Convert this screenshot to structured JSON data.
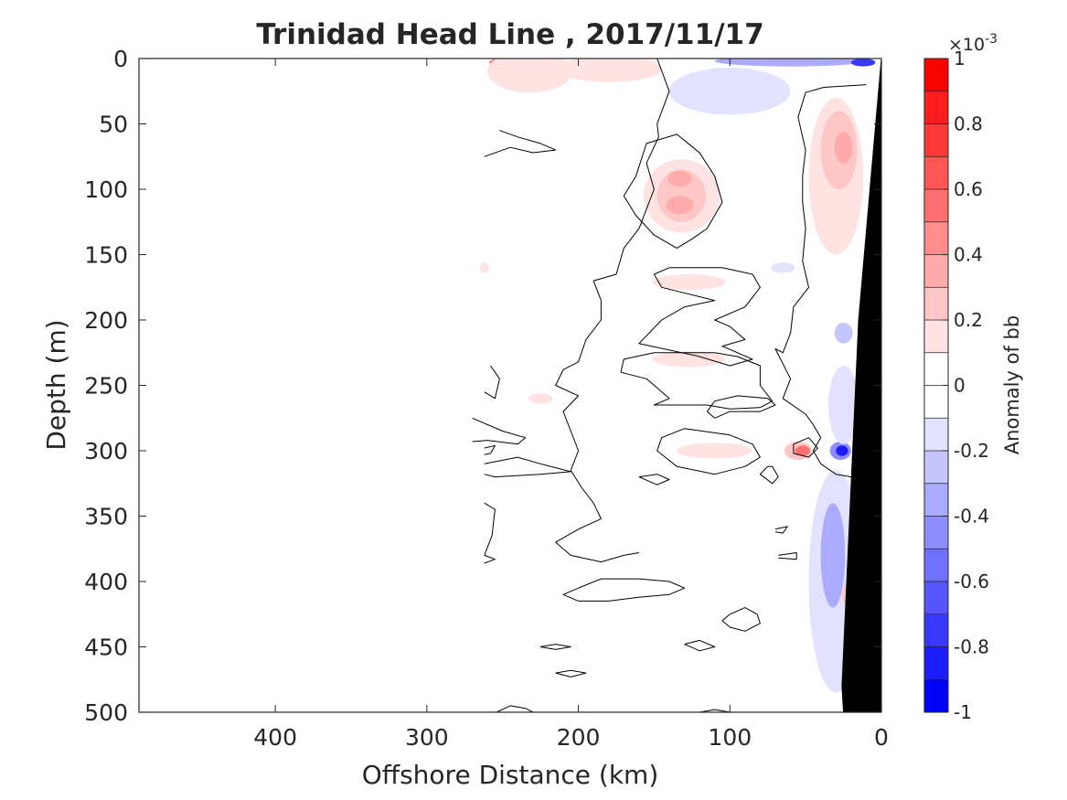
{
  "chart_data": {
    "type": "heatmap",
    "title": "Trinidad Head Line , 2017/11/17",
    "xlabel": "Offshore Distance (km)",
    "ylabel": "Depth (m)",
    "xlim": [
      490,
      0
    ],
    "ylim": [
      0,
      500
    ],
    "x_reversed": true,
    "y_reversed": true,
    "x_ticks": [
      400,
      300,
      200,
      100,
      0
    ],
    "x_tick_labels": [
      "400",
      "300",
      "200",
      "100",
      "0"
    ],
    "y_ticks": [
      0,
      50,
      100,
      150,
      200,
      250,
      300,
      350,
      400,
      450,
      500
    ],
    "y_tick_labels": [
      "0",
      "50",
      "100",
      "150",
      "200",
      "250",
      "300",
      "350",
      "400",
      "450",
      "500"
    ],
    "data_extent_km": [
      0,
      262
    ],
    "colorbar": {
      "label": "Anomaly of bb",
      "exponent_prefix": "×10",
      "exponent_power": "-3",
      "range": [
        -1,
        1
      ],
      "ticks": [
        1,
        0.8,
        0.6,
        0.4,
        0.2,
        0,
        -0.2,
        -0.4,
        -0.6,
        -0.8,
        -1
      ],
      "tick_labels": [
        "1",
        "0.8",
        "0.6",
        "0.4",
        "0.2",
        "0",
        "-0.2",
        "-0.4",
        "-0.6",
        "-0.8",
        "-1"
      ],
      "levels": [
        {
          "from": 0.9,
          "to": 1.0,
          "color": "#ff0000"
        },
        {
          "from": 0.8,
          "to": 0.9,
          "color": "#ff1c1c"
        },
        {
          "from": 0.7,
          "to": 0.8,
          "color": "#ff3838"
        },
        {
          "from": 0.6,
          "to": 0.7,
          "color": "#ff5555"
        },
        {
          "from": 0.5,
          "to": 0.6,
          "color": "#ff7171"
        },
        {
          "from": 0.4,
          "to": 0.5,
          "color": "#ff8d8d"
        },
        {
          "from": 0.3,
          "to": 0.4,
          "color": "#ffaaaa"
        },
        {
          "from": 0.2,
          "to": 0.3,
          "color": "#ffc6c6"
        },
        {
          "from": 0.1,
          "to": 0.2,
          "color": "#ffe2e2"
        },
        {
          "from": 0.0,
          "to": 0.1,
          "color": "#ffffff"
        },
        {
          "from": -0.1,
          "to": 0.0,
          "color": "#ffffff"
        },
        {
          "from": -0.2,
          "to": -0.1,
          "color": "#e2e2ff"
        },
        {
          "from": -0.3,
          "to": -0.2,
          "color": "#c6c6ff"
        },
        {
          "from": -0.4,
          "to": -0.3,
          "color": "#aaaaff"
        },
        {
          "from": -0.5,
          "to": -0.4,
          "color": "#8d8dff"
        },
        {
          "from": -0.6,
          "to": -0.5,
          "color": "#7171ff"
        },
        {
          "from": -0.7,
          "to": -0.6,
          "color": "#5555ff"
        },
        {
          "from": -0.8,
          "to": -0.7,
          "color": "#3838ff"
        },
        {
          "from": -0.9,
          "to": -0.8,
          "color": "#1c1cff"
        },
        {
          "from": -1.0,
          "to": -0.9,
          "color": "#0000ff"
        }
      ]
    },
    "anomaly_patches": [
      {
        "x": 245,
        "y": 3,
        "rx": 14,
        "ry": 4,
        "value": 0.45
      },
      {
        "x": 232,
        "y": 10,
        "rx": 28,
        "ry": 16,
        "value": 0.15
      },
      {
        "x": 180,
        "y": 8,
        "rx": 35,
        "ry": 10,
        "value": 0.15
      },
      {
        "x": 60,
        "y": 2,
        "rx": 50,
        "ry": 4,
        "value": -0.3
      },
      {
        "x": 12,
        "y": 3,
        "rx": 8,
        "ry": 3,
        "value": -0.7
      },
      {
        "x": 100,
        "y": 25,
        "rx": 40,
        "ry": 18,
        "value": -0.12
      },
      {
        "x": 132,
        "y": 105,
        "rx": 25,
        "ry": 28,
        "value": 0.15
      },
      {
        "x": 132,
        "y": 105,
        "rx": 16,
        "ry": 20,
        "value": 0.25
      },
      {
        "x": 133,
        "y": 92,
        "rx": 8,
        "ry": 6,
        "value": 0.35
      },
      {
        "x": 133,
        "y": 112,
        "rx": 9,
        "ry": 7,
        "value": 0.35
      },
      {
        "x": 30,
        "y": 90,
        "rx": 18,
        "ry": 60,
        "value": 0.15
      },
      {
        "x": 28,
        "y": 70,
        "rx": 12,
        "ry": 30,
        "value": 0.25
      },
      {
        "x": 25,
        "y": 68,
        "rx": 6,
        "ry": 12,
        "value": 0.35
      },
      {
        "x": 127,
        "y": 171,
        "rx": 24,
        "ry": 6,
        "value": 0.15
      },
      {
        "x": 127,
        "y": 230,
        "rx": 24,
        "ry": 6,
        "value": 0.15
      },
      {
        "x": 110,
        "y": 300,
        "rx": 25,
        "ry": 6,
        "value": 0.15
      },
      {
        "x": 55,
        "y": 300,
        "rx": 9,
        "ry": 7,
        "value": 0.25
      },
      {
        "x": 52,
        "y": 300,
        "rx": 5,
        "ry": 4,
        "value": 0.55
      },
      {
        "x": 27,
        "y": 300,
        "rx": 7,
        "ry": 7,
        "value": -0.45
      },
      {
        "x": 26,
        "y": 300,
        "rx": 4,
        "ry": 4,
        "value": -0.8
      },
      {
        "x": 65,
        "y": 160,
        "rx": 8,
        "ry": 4,
        "value": -0.15
      },
      {
        "x": 30,
        "y": 400,
        "rx": 18,
        "ry": 85,
        "value": -0.15
      },
      {
        "x": 32,
        "y": 380,
        "rx": 8,
        "ry": 40,
        "value": -0.3
      },
      {
        "x": 25,
        "y": 265,
        "rx": 10,
        "ry": 30,
        "value": -0.15
      },
      {
        "x": 20,
        "y": 410,
        "rx": 6,
        "ry": 10,
        "value": 0.3
      },
      {
        "x": 225,
        "y": 260,
        "rx": 8,
        "ry": 4,
        "value": 0.15
      },
      {
        "x": 262,
        "y": 160,
        "rx": 3,
        "ry": 4,
        "value": 0.15
      },
      {
        "x": 25,
        "y": 210,
        "rx": 6,
        "ry": 8,
        "value": -0.2
      }
    ],
    "zero_contours": [
      [
        [
          148,
          0
        ],
        [
          140,
          25
        ],
        [
          148,
          50
        ],
        [
          147,
          60
        ],
        [
          155,
          80
        ],
        [
          150,
          100
        ],
        [
          160,
          130
        ],
        [
          170,
          145
        ],
        [
          175,
          165
        ],
        [
          190,
          170
        ],
        [
          185,
          185
        ],
        [
          185,
          200
        ],
        [
          195,
          215
        ],
        [
          200,
          232
        ],
        [
          210,
          238
        ],
        [
          215,
          250
        ],
        [
          200,
          258
        ],
        [
          210,
          270
        ],
        [
          205,
          285
        ],
        [
          200,
          300
        ],
        [
          205,
          315
        ],
        [
          198,
          328
        ],
        [
          190,
          340
        ],
        [
          185,
          352
        ],
        [
          200,
          360
        ],
        [
          215,
          370
        ],
        [
          205,
          380
        ],
        [
          185,
          385
        ],
        [
          170,
          380
        ],
        [
          160,
          378
        ]
      ],
      [
        [
          10,
          20
        ],
        [
          38,
          22
        ],
        [
          50,
          26
        ],
        [
          55,
          45
        ],
        [
          50,
          70
        ],
        [
          52,
          90
        ],
        [
          52,
          110
        ],
        [
          50,
          130
        ],
        [
          52,
          155
        ],
        [
          48,
          175
        ],
        [
          58,
          190
        ],
        [
          60,
          210
        ],
        [
          65,
          225
        ],
        [
          70,
          222
        ],
        [
          60,
          245
        ],
        [
          65,
          260
        ],
        [
          50,
          272
        ],
        [
          45,
          280
        ],
        [
          40,
          290
        ],
        [
          45,
          300
        ],
        [
          40,
          310
        ],
        [
          30,
          318
        ],
        [
          20,
          320
        ],
        [
          15,
          330
        ],
        [
          14,
          360
        ],
        [
          12,
          400
        ],
        [
          15,
          440
        ],
        [
          12,
          470
        ],
        [
          14,
          500
        ]
      ],
      [
        [
          155,
          65
        ],
        [
          135,
          58
        ],
        [
          120,
          72
        ],
        [
          110,
          90
        ],
        [
          105,
          110
        ],
        [
          115,
          130
        ],
        [
          125,
          138
        ],
        [
          135,
          145
        ],
        [
          150,
          135
        ],
        [
          162,
          120
        ],
        [
          170,
          105
        ],
        [
          162,
          90
        ],
        [
          155,
          65
        ]
      ],
      [
        [
          252,
          55
        ],
        [
          240,
          60
        ],
        [
          225,
          65
        ],
        [
          215,
          70
        ],
        [
          230,
          72
        ],
        [
          245,
          68
        ],
        [
          262,
          75
        ]
      ],
      [
        [
          150,
          165
        ],
        [
          140,
          160
        ],
        [
          105,
          160
        ],
        [
          85,
          165
        ],
        [
          80,
          175
        ],
        [
          90,
          190
        ],
        [
          110,
          200
        ],
        [
          100,
          205
        ],
        [
          90,
          215
        ],
        [
          105,
          220
        ],
        [
          85,
          230
        ],
        [
          100,
          235
        ],
        [
          120,
          228
        ],
        [
          160,
          218
        ],
        [
          145,
          200
        ],
        [
          130,
          190
        ],
        [
          110,
          185
        ],
        [
          145,
          175
        ],
        [
          150,
          165
        ]
      ],
      [
        [
          172,
          240
        ],
        [
          155,
          245
        ],
        [
          140,
          260
        ],
        [
          150,
          265
        ],
        [
          115,
          265
        ],
        [
          100,
          268
        ],
        [
          80,
          267
        ],
        [
          72,
          262
        ],
        [
          80,
          250
        ],
        [
          80,
          235
        ],
        [
          95,
          228
        ],
        [
          110,
          225
        ],
        [
          150,
          225
        ],
        [
          170,
          230
        ],
        [
          172,
          240
        ]
      ],
      [
        [
          270,
          275
        ],
        [
          250,
          285
        ],
        [
          235,
          290
        ],
        [
          240,
          295
        ],
        [
          260,
          292
        ],
        [
          270,
          293
        ]
      ],
      [
        [
          130,
          283
        ],
        [
          145,
          290
        ],
        [
          148,
          300
        ],
        [
          135,
          312
        ],
        [
          110,
          318
        ],
        [
          90,
          312
        ],
        [
          80,
          305
        ],
        [
          85,
          295
        ],
        [
          100,
          288
        ],
        [
          130,
          283
        ]
      ],
      [
        [
          110,
          275
        ],
        [
          100,
          270
        ],
        [
          80,
          270
        ],
        [
          70,
          265
        ],
        [
          75,
          260
        ],
        [
          95,
          258
        ],
        [
          110,
          262
        ],
        [
          115,
          270
        ],
        [
          110,
          275
        ]
      ],
      [
        [
          200,
          415
        ],
        [
          180,
          415
        ],
        [
          160,
          412
        ],
        [
          140,
          410
        ],
        [
          130,
          405
        ],
        [
          140,
          400
        ],
        [
          160,
          398
        ],
        [
          185,
          398
        ],
        [
          200,
          405
        ],
        [
          210,
          410
        ],
        [
          200,
          415
        ]
      ],
      [
        [
          100,
          425
        ],
        [
          90,
          420
        ],
        [
          82,
          425
        ],
        [
          80,
          432
        ],
        [
          90,
          438
        ],
        [
          100,
          435
        ],
        [
          105,
          430
        ],
        [
          100,
          425
        ]
      ],
      [
        [
          262,
          310
        ],
        [
          240,
          305
        ],
        [
          225,
          310
        ],
        [
          205,
          316
        ],
        [
          225,
          318
        ],
        [
          255,
          320
        ],
        [
          262,
          318
        ]
      ],
      [
        [
          262,
          255
        ],
        [
          255,
          260
        ],
        [
          252,
          245
        ],
        [
          258,
          235
        ]
      ],
      [
        [
          262,
          340
        ],
        [
          255,
          345
        ],
        [
          257,
          365
        ],
        [
          262,
          380
        ]
      ],
      [
        [
          75,
          312
        ],
        [
          80,
          318
        ],
        [
          72,
          325
        ],
        [
          68,
          320
        ],
        [
          72,
          312
        ],
        [
          75,
          312
        ]
      ],
      [
        [
          58,
          295
        ],
        [
          48,
          290
        ],
        [
          42,
          298
        ],
        [
          48,
          305
        ],
        [
          58,
          302
        ],
        [
          58,
          295
        ]
      ],
      [
        [
          70,
          360
        ],
        [
          62,
          358
        ],
        [
          65,
          363
        ],
        [
          70,
          362
        ]
      ],
      [
        [
          68,
          380
        ],
        [
          56,
          378
        ],
        [
          56,
          383
        ],
        [
          68,
          382
        ]
      ],
      [
        [
          225,
          450
        ],
        [
          215,
          448
        ],
        [
          205,
          450
        ],
        [
          215,
          452
        ],
        [
          225,
          450
        ]
      ],
      [
        [
          130,
          448
        ],
        [
          120,
          445
        ],
        [
          110,
          450
        ],
        [
          120,
          453
        ],
        [
          130,
          448
        ]
      ],
      [
        [
          215,
          470
        ],
        [
          205,
          468
        ],
        [
          195,
          470
        ],
        [
          205,
          473
        ],
        [
          215,
          470
        ]
      ],
      [
        [
          160,
          320
        ],
        [
          148,
          318
        ],
        [
          140,
          322
        ],
        [
          148,
          326
        ],
        [
          160,
          320
        ]
      ],
      [
        [
          254,
          500
        ],
        [
          245,
          495
        ],
        [
          235,
          497
        ],
        [
          230,
          500
        ]
      ],
      [
        [
          120,
          500
        ],
        [
          110,
          498
        ],
        [
          100,
          500
        ]
      ],
      [
        [
          262,
          298
        ],
        [
          255,
          296
        ],
        [
          258,
          302
        ],
        [
          262,
          303
        ]
      ],
      [
        [
          262,
          380
        ],
        [
          255,
          383
        ],
        [
          262,
          386
        ]
      ]
    ],
    "bathymetry": [
      [
        0,
        0
      ],
      [
        0,
        500
      ],
      [
        25,
        500
      ],
      [
        26,
        480
      ],
      [
        15,
        200
      ],
      [
        0,
        0
      ]
    ]
  }
}
